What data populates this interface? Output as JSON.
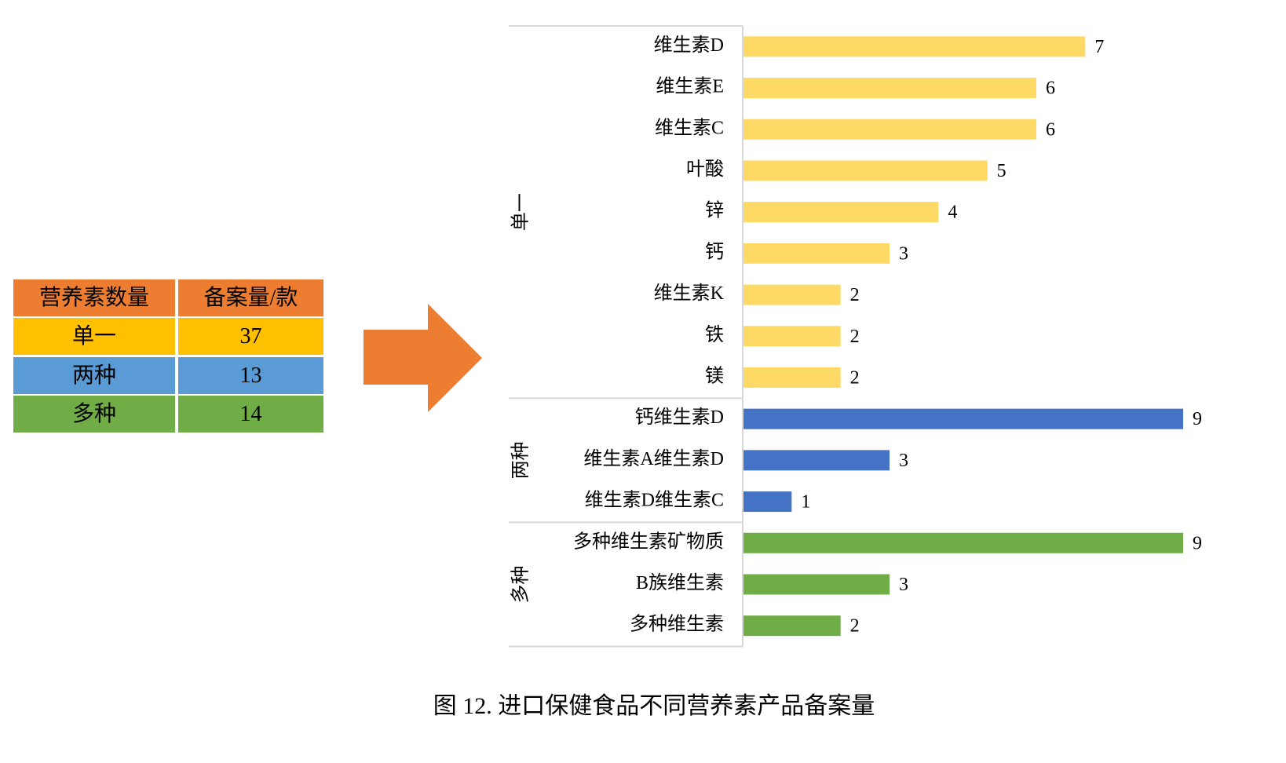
{
  "table": {
    "header": [
      "营养素数量",
      "备案量/款"
    ],
    "rows": [
      [
        "单一",
        37
      ],
      [
        "两种",
        13
      ],
      [
        "多种",
        14
      ]
    ]
  },
  "chart_data": {
    "type": "bar",
    "orientation": "horizontal",
    "title": "图 12. 进口保健食品不同营养素产品备案量",
    "series": [
      {
        "name": "单一",
        "color": "#ffd966",
        "categories": [
          "维生素D",
          "维生素E",
          "维生素C",
          "叶酸",
          "锌",
          "钙",
          "维生素K",
          "铁",
          "镁"
        ],
        "values": [
          7,
          6,
          6,
          5,
          4,
          3,
          2,
          2,
          2
        ]
      },
      {
        "name": "两种",
        "color": "#4472c4",
        "categories": [
          "钙维生素D",
          "维生素A维生素D",
          "维生素D维生素C"
        ],
        "values": [
          9,
          3,
          1
        ]
      },
      {
        "name": "多种",
        "color": "#70ad47",
        "categories": [
          "多种维生素矿物质",
          "B族维生素",
          "多种维生素"
        ],
        "values": [
          9,
          3,
          2
        ]
      }
    ]
  }
}
